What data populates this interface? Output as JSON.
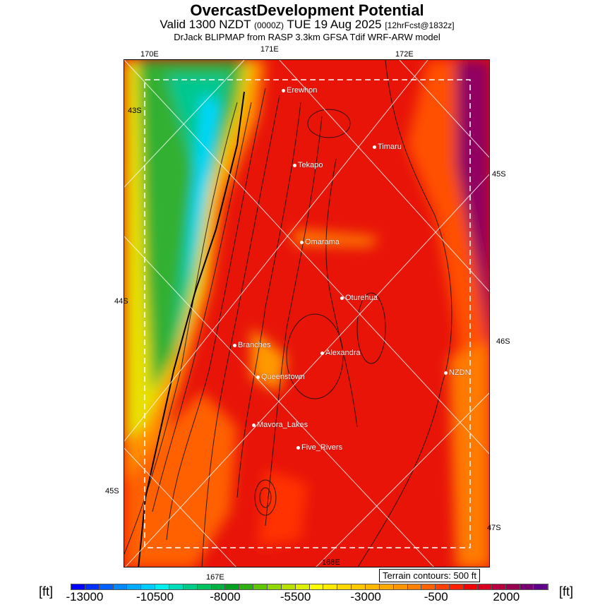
{
  "header": {
    "title": "OvercastDevelopment Potential",
    "valid": "Valid 1300 NZDT",
    "utc": "(0000Z)",
    "date": "TUE 19 Aug 2025",
    "forecast": "[12hrFcst@1832z]",
    "model": "DrJack BLIPMAP from RASP 3.3km GFSA Tdif WRF-ARW model"
  },
  "axes": {
    "top": [
      "170E",
      "171E",
      "172E"
    ],
    "left": [
      "43S",
      "44S",
      "45S"
    ],
    "right": [
      "45S",
      "46S",
      "47S"
    ],
    "bottom": [
      "167E",
      "168E"
    ]
  },
  "places": [
    "Erewhon",
    "Timaru",
    "Tekapo",
    "Omarama",
    "Oturehua",
    "Branches",
    "Alexandra",
    "Queenstown",
    "NZDN",
    "Mavora_Lakes",
    "Five_Rivers"
  ],
  "terrain_note": "Terrain contours: 500 ft",
  "legend": {
    "unit": "[ft]",
    "labels": [
      "-13000",
      "-10500",
      "-8000",
      "-5500",
      "-3000",
      "-500",
      "2000"
    ],
    "colors": [
      "#0000ff",
      "#0030ff",
      "#0060ff",
      "#0088ff",
      "#00aaff",
      "#00ccff",
      "#00eeee",
      "#00ddbb",
      "#00cc88",
      "#00c060",
      "#00b040",
      "#00a020",
      "#30b010",
      "#60c800",
      "#90d800",
      "#b8e000",
      "#ddf000",
      "#ffff00",
      "#ffea00",
      "#ffd800",
      "#ffc800",
      "#ffb800",
      "#ffa800",
      "#ff9600",
      "#ff8000",
      "#ff6000",
      "#ff4000",
      "#ff2000",
      "#f00000",
      "#d80020",
      "#b80040",
      "#980050",
      "#780070",
      "#600088"
    ]
  }
}
